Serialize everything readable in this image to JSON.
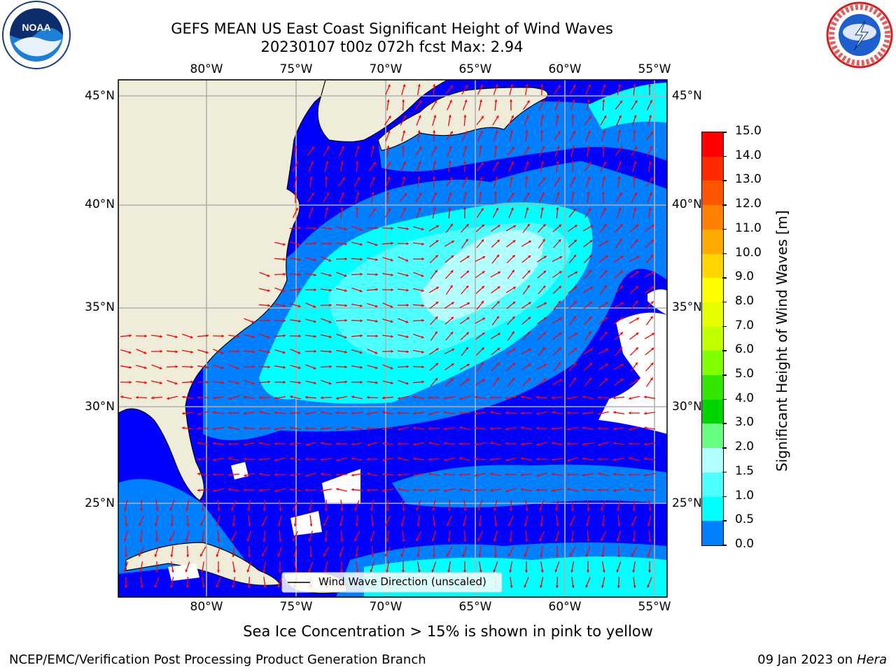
{
  "header": {
    "title_line1": "GEFS MEAN US East Coast Significant Height of Wind Waves",
    "title_line2": "20230107 t00z 072h fcst   Max: 2.94"
  },
  "logos": {
    "left": {
      "name": "noaa-logo",
      "text": "NOAA"
    },
    "right": {
      "name": "nws-logo",
      "text": "NATIONAL WEATHER SERVICE"
    }
  },
  "map": {
    "lon_labels": [
      "80°W",
      "75°W",
      "70°W",
      "65°W",
      "60°W",
      "55°W"
    ],
    "lat_labels": [
      "45°N",
      "40°N",
      "35°N",
      "30°N",
      "25°N"
    ],
    "legend_text": "Wind Wave Direction (unscaled)",
    "arrow_color": "#ff0000",
    "land_color": "#efedda",
    "grid_color": "#b0b0b0"
  },
  "colorbar": {
    "label": "Significant Height of Wind Waves [m]",
    "ticks": [
      "15.0",
      "14.0",
      "13.0",
      "12.0",
      "11.0",
      "10.0",
      "9.0",
      "8.0",
      "7.0",
      "6.0",
      "5.0",
      "4.0",
      "3.0",
      "2.0",
      "1.5",
      "1.0",
      "0.5",
      "0.0"
    ],
    "colors": [
      "#ff0000",
      "#ff2a00",
      "#ff5500",
      "#ff8000",
      "#ffaa00",
      "#ffd400",
      "#ffff00",
      "#e6ff00",
      "#bfff00",
      "#80ff00",
      "#33e600",
      "#00d400",
      "#66ff80",
      "#b3ffff",
      "#4dffff",
      "#00ffff",
      "#0080ff",
      "#0000ff"
    ]
  },
  "notes": {
    "sea_ice": "Sea Ice Concentration > 15% is shown in pink to yellow"
  },
  "footer": {
    "left": "NCEP/EMC/Verification Post Processing Product Generation Branch",
    "right_date": "09 Jan 2023 on ",
    "right_machine": "Hera"
  }
}
